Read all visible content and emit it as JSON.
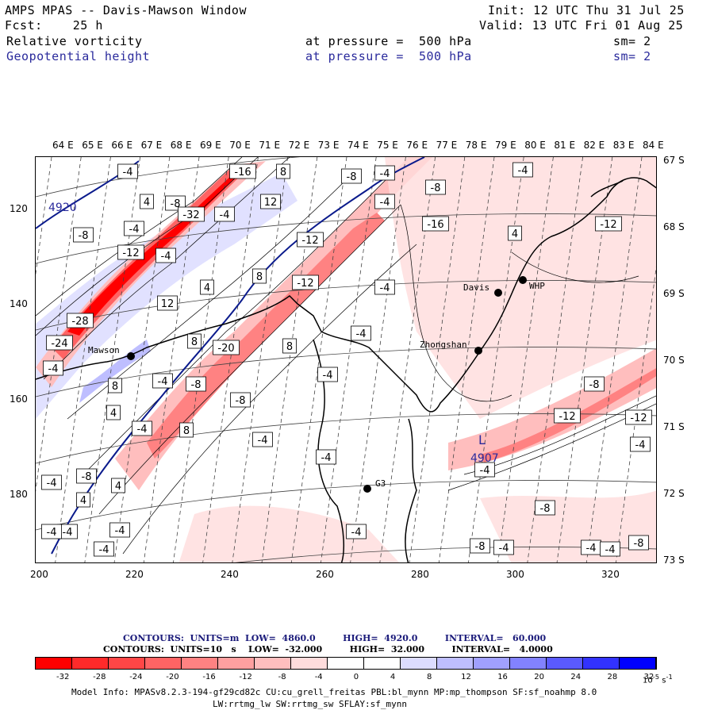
{
  "header": {
    "title": "AMPS MPAS -- Davis-Mawson Window",
    "init": "Init: 12 UTC Thu 31 Jul 25",
    "fcst": "Fcst:    25 h",
    "valid": "Valid: 13 UTC Fri 01 Aug 25",
    "field1": "Relative vorticity",
    "field1_level": "at pressure =  500 hPa",
    "field1_sm": "sm= 2",
    "field2": "Geopotential height",
    "field2_level": "at pressure =  500 hPa",
    "field2_sm": "sm= 2"
  },
  "axes": {
    "lon_ticks": [
      "64 E",
      "65 E",
      "66 E",
      "67 E",
      "68 E",
      "69 E",
      "70 E",
      "71 E",
      "72 E",
      "73 E",
      "74 E",
      "75 E",
      "76 E",
      "77 E",
      "78 E",
      "79 E",
      "80 E",
      "81 E",
      "82 E",
      "83 E",
      "84 E"
    ],
    "lat_ticks": [
      "67 S",
      "68 S",
      "69 S",
      "70 S",
      "71 S",
      "72 S",
      "73 S"
    ],
    "y_ticks": [
      "120",
      "140",
      "160",
      "180"
    ],
    "x_ticks": [
      "200",
      "220",
      "240",
      "260",
      "280",
      "300",
      "320"
    ]
  },
  "map": {
    "stations": [
      {
        "name": "Davis"
      },
      {
        "name": "WHP"
      },
      {
        "name": "Zhongshan"
      },
      {
        "name": "Mawson"
      },
      {
        "name": "G3"
      }
    ],
    "height_labels": [
      "4920",
      "4907"
    ],
    "low_marker": "L",
    "vort_labels": [
      "-4",
      "-16",
      "8",
      "-8",
      "-8",
      "-4",
      "4",
      "12",
      "-8",
      "-32",
      "-4",
      "-8",
      "-4",
      "-4",
      "-4",
      "-16",
      "4",
      "-12",
      "-12",
      "-4",
      "-12",
      "8",
      "-12",
      "12",
      "-4",
      "-28",
      "4",
      "-4",
      "-24",
      "8",
      "-20",
      "8",
      "-4",
      "-4",
      "-4",
      "8",
      "4",
      "-8",
      "-8",
      "-8",
      "-4",
      "8",
      "-12",
      "-4",
      "-4",
      "-12",
      "-4",
      "4",
      "-4",
      "4",
      "-8",
      "-4",
      "-4",
      "-8",
      "-4",
      "-8",
      "-4",
      "-4",
      "-4",
      "-4",
      "-4",
      "-4",
      "-8"
    ]
  },
  "contour_info": {
    "height": {
      "units": "m",
      "low": "4860.0",
      "high": "4920.0",
      "interval": "60.000"
    },
    "vort": {
      "units": "10",
      "low": "-32.000",
      "high": "32.000",
      "interval": "4.0000"
    },
    "line1": "CONTOURS:  UNITS=m  LOW=  4860.0         HIGH=  4920.0         INTERVAL=   60.000",
    "line2": "CONTOURS:  UNITS=10   s    LOW=  -32.000         HIGH=  32.000         INTERVAL=   4.0000"
  },
  "colorbar": {
    "labels": [
      "-32",
      "-28",
      "-24",
      "-20",
      "-16",
      "-12",
      "-8",
      "-4",
      "0",
      "4",
      "8",
      "12",
      "16",
      "20",
      "24",
      "28",
      "32"
    ],
    "unit": "10",
    "colors": [
      "#ff0000",
      "#ff2a2a",
      "#ff4646",
      "#ff6464",
      "#ff8282",
      "#ffa0a0",
      "#ffbebe",
      "#ffdcdc",
      "#ffffff",
      "#ffffff",
      "#dcdcff",
      "#bebeff",
      "#a0a0ff",
      "#8282ff",
      "#5a5aff",
      "#3232ff",
      "#0000ff"
    ]
  },
  "model_info": {
    "line1": "Model Info: MPASv8.2.3-194-gf29cd82c CU:cu_grell_freitas PBL:bl_mynn MP:mp_thompson SF:sf_noahmp 8.0",
    "line2": "LW:rrtmg_lw SW:rrtmg_sw SFLAY:sf_mynn"
  }
}
